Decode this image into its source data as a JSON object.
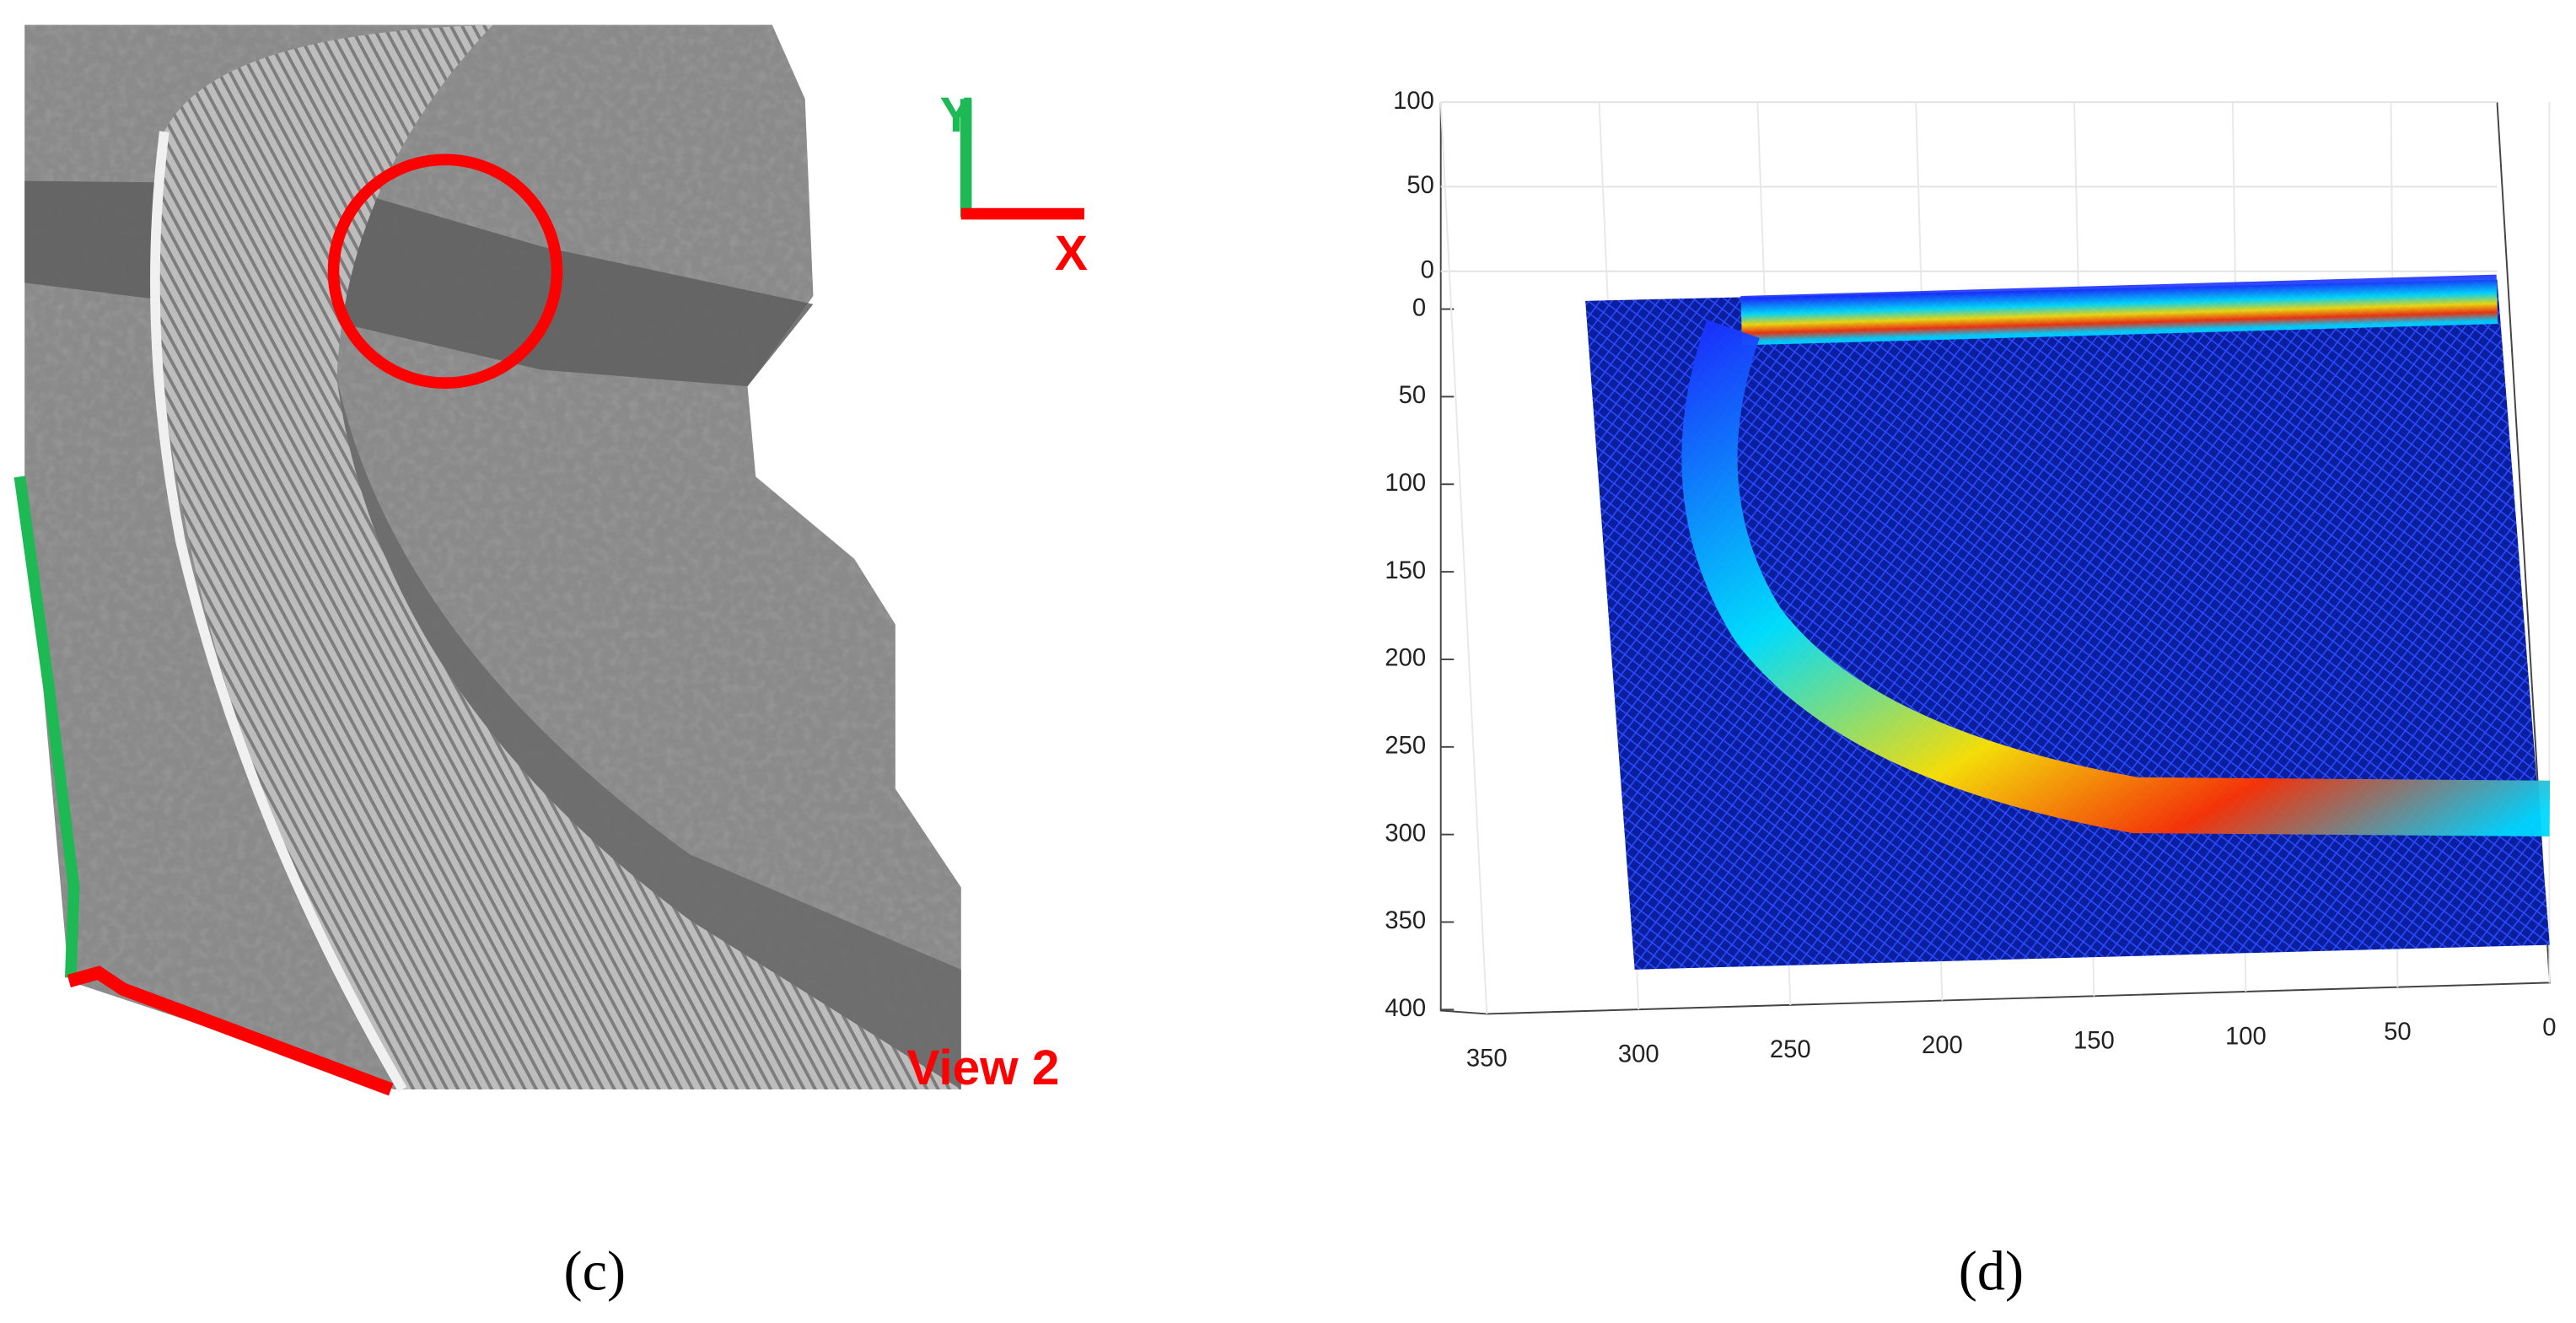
{
  "panels": [
    {
      "label": "(c)",
      "axis_labels": {
        "y": "Y",
        "x": "X"
      },
      "view_label": "View 2"
    },
    {
      "label": "(d)",
      "z_ticks": [
        100,
        50,
        0
      ],
      "y_ticks": [
        0,
        50,
        100,
        150,
        200,
        250,
        300,
        350,
        400
      ],
      "x_ticks": [
        350,
        300,
        250,
        200,
        150,
        100,
        50,
        0
      ]
    }
  ]
}
